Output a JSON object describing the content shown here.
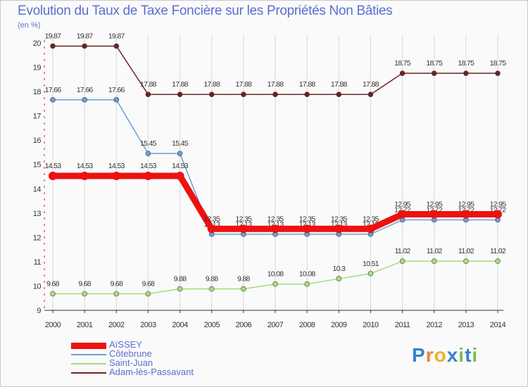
{
  "chart_data": {
    "type": "line",
    "title": "Evolution du Taux de Taxe Foncière sur les Propriétés Non Bâties",
    "ylabel": "(en %)",
    "xlabel": "",
    "ylim": [
      9,
      20
    ],
    "yticks": [
      9,
      10,
      11,
      12,
      13,
      14,
      15,
      16,
      17,
      18,
      19,
      20
    ],
    "x": [
      "2000",
      "2001",
      "2002",
      "2003",
      "2004",
      "2005",
      "2006",
      "2007",
      "2008",
      "2009",
      "2010",
      "2011",
      "2012",
      "2013",
      "2014"
    ],
    "series": [
      {
        "name": "Adam-lès-Passavant",
        "color": "#6b2424",
        "values": [
          19.87,
          19.87,
          19.87,
          17.88,
          17.88,
          17.88,
          17.88,
          17.88,
          17.88,
          17.88,
          17.88,
          18.75,
          18.75,
          18.75,
          18.75
        ],
        "labels": [
          "19.87",
          "19.87",
          "19.87",
          "17.88",
          "17.88",
          "17.88",
          "17.88",
          "17.88",
          "17.88",
          "17.88",
          "17.88",
          "18.75",
          "18.75",
          "18.75",
          "18.75"
        ]
      },
      {
        "name": "Côtebrune",
        "color": "#6a9fd8",
        "values": [
          17.66,
          17.66,
          17.66,
          15.45,
          15.45,
          12.13,
          12.13,
          12.13,
          12.13,
          12.13,
          12.13,
          12.72,
          12.72,
          12.72,
          12.72
        ],
        "labels": [
          "17.66",
          "17.66",
          "17.66",
          "15.45",
          "15.45",
          "12.13",
          "12.13",
          "12.13",
          "12.13",
          "12.13",
          "12.13",
          "12.72",
          "12.72",
          "12.72",
          "12.72"
        ]
      },
      {
        "name": "Saint-Juan",
        "color": "#a8dc7a",
        "values": [
          9.68,
          9.68,
          9.68,
          9.68,
          9.88,
          9.88,
          9.88,
          10.08,
          10.08,
          10.3,
          10.51,
          11.02,
          11.02,
          11.02,
          11.02
        ],
        "labels": [
          "9.68",
          "9.68",
          "9.68",
          "9.68",
          "9.88",
          "9.88",
          "9.88",
          "10.08",
          "10.08",
          "10.3",
          "10.51",
          "11.02",
          "11.02",
          "11.02",
          "11.02"
        ]
      },
      {
        "name": "AïSSEY",
        "color": "#ee1111",
        "values": [
          14.53,
          14.53,
          14.53,
          14.53,
          14.53,
          12.35,
          12.35,
          12.35,
          12.35,
          12.35,
          12.35,
          12.95,
          12.95,
          12.95,
          12.95
        ],
        "labels": [
          "14.53",
          "14.53",
          "14.53",
          "14.53",
          "14.53",
          "12.35",
          "12.35",
          "12.35",
          "12.35",
          "12.35",
          "12.35",
          "12.95",
          "12.95",
          "12.95",
          "12.95"
        ]
      }
    ],
    "legend": [
      "AïSSEY",
      "Côtebrune",
      "Saint-Juan",
      "Adam-lès-Passavant"
    ]
  },
  "logo": {
    "text": "Proxiti"
  }
}
